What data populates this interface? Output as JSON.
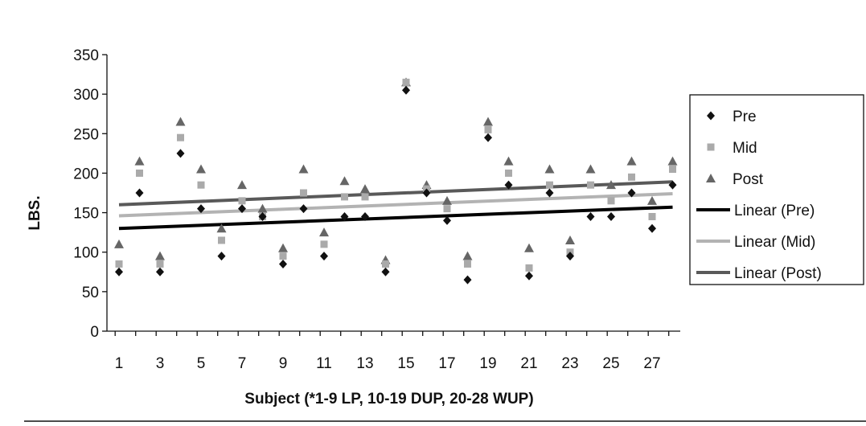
{
  "chart_data": {
    "type": "scatter",
    "xlabel": "Subject (*1-9 LP, 10-19 DUP, 20-28 WUP)",
    "ylabel": "LBS.",
    "xlim": [
      1,
      28
    ],
    "ylim": [
      0,
      350
    ],
    "y_ticks": [
      0,
      50,
      100,
      150,
      200,
      250,
      300,
      350
    ],
    "x_tick_labels": [
      1,
      3,
      5,
      7,
      9,
      11,
      13,
      15,
      17,
      19,
      21,
      23,
      25,
      27
    ],
    "grid": false,
    "legend_position": "right",
    "x": [
      1,
      2,
      3,
      4,
      5,
      6,
      7,
      8,
      9,
      10,
      11,
      12,
      13,
      14,
      15,
      16,
      17,
      18,
      19,
      20,
      21,
      22,
      23,
      24,
      25,
      26,
      27,
      28
    ],
    "series": [
      {
        "name": "Pre",
        "marker": "diamond",
        "color": "#111111",
        "values": [
          75,
          175,
          75,
          225,
          155,
          95,
          155,
          145,
          85,
          155,
          95,
          145,
          145,
          75,
          305,
          175,
          140,
          65,
          245,
          185,
          70,
          175,
          95,
          145,
          145,
          175,
          130,
          185
        ]
      },
      {
        "name": "Mid",
        "marker": "square",
        "color": "#aaaaaa",
        "values": [
          85,
          200,
          85,
          245,
          185,
          115,
          165,
          145,
          95,
          175,
          110,
          170,
          170,
          85,
          315,
          180,
          155,
          85,
          255,
          200,
          80,
          185,
          100,
          185,
          165,
          195,
          145,
          205
        ]
      },
      {
        "name": "Post",
        "marker": "triangle",
        "color": "#666666",
        "values": [
          110,
          215,
          95,
          265,
          205,
          130,
          185,
          155,
          105,
          205,
          125,
          190,
          180,
          90,
          315,
          185,
          165,
          95,
          265,
          215,
          105,
          205,
          115,
          205,
          185,
          215,
          165,
          215
        ]
      }
    ],
    "trendlines": [
      {
        "name": "Linear (Pre)",
        "color": "#000000",
        "start": 130,
        "end": 157
      },
      {
        "name": "Linear (Mid)",
        "color": "#b3b3b3",
        "start": 146,
        "end": 174
      },
      {
        "name": "Linear (Post)",
        "color": "#595959",
        "start": 160,
        "end": 189
      }
    ]
  }
}
